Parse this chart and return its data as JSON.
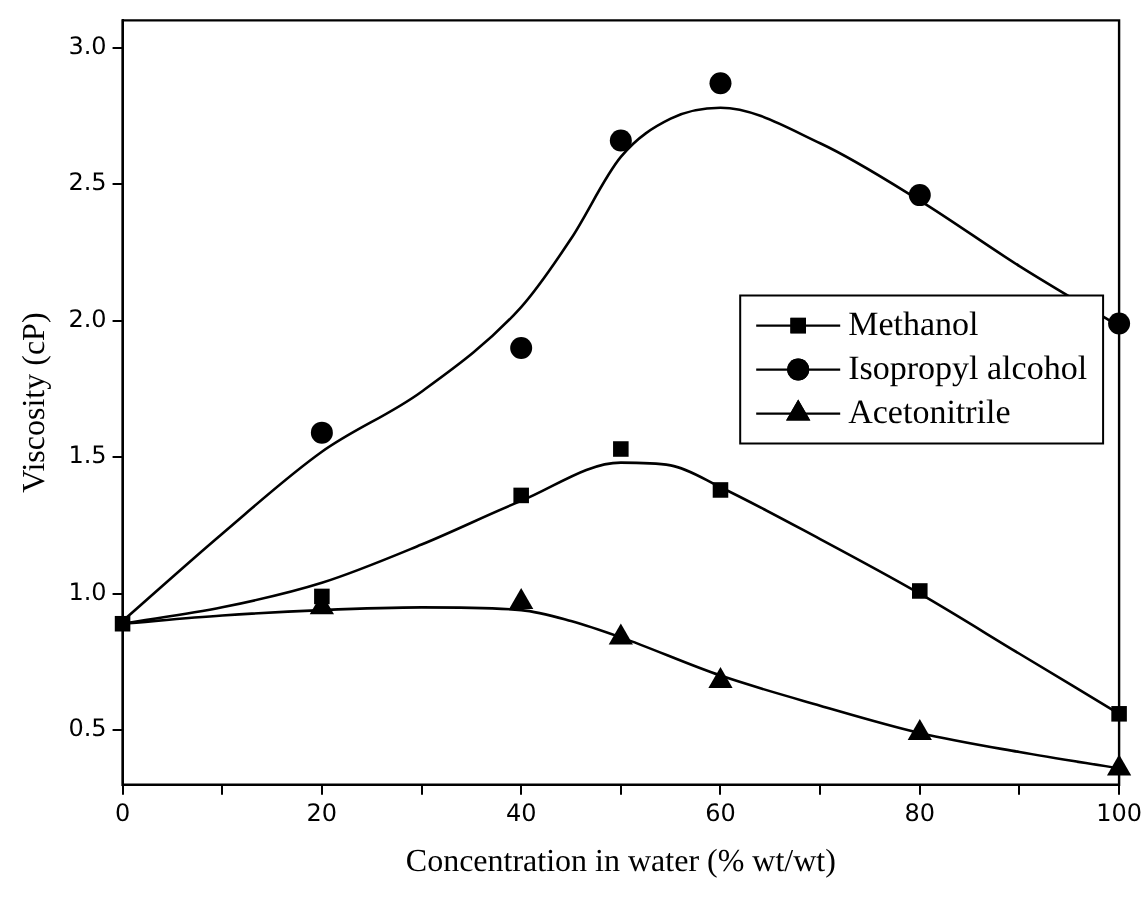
{
  "chart_data": {
    "type": "scatter",
    "xlabel": "Concentration in water (% wt/wt)",
    "ylabel": "Viscosity (cP)",
    "xlim": [
      0,
      100
    ],
    "ylim": [
      0.3,
      3.1
    ],
    "xticks": [
      0,
      {
        "value": 10,
        "label": null
      },
      20,
      {
        "value": 30,
        "label": null
      },
      40,
      {
        "value": 50,
        "label": null
      },
      60,
      {
        "value": 70,
        "label": null
      },
      80,
      {
        "value": 90,
        "label": null
      },
      100
    ],
    "yticks": [
      0.5,
      {
        "value": 1,
        "label": "1.0"
      },
      1.5,
      {
        "value": 2,
        "label": "2.0"
      },
      2.5,
      {
        "value": 3,
        "label": "3.0"
      }
    ],
    "grid": false,
    "legend": "right",
    "series": [
      {
        "name": "Methanol",
        "marker": "square",
        "color": "#000000",
        "x": [
          0,
          20,
          40,
          50,
          60,
          80,
          100
        ],
        "values": [
          0.89,
          0.99,
          1.36,
          1.53,
          1.38,
          1.01,
          0.56
        ]
      },
      {
        "name": "Isopropyl alcohol",
        "marker": "circle",
        "color": "#000000",
        "x": [
          20,
          40,
          50,
          60,
          80,
          100
        ],
        "values": [
          1.59,
          1.9,
          2.66,
          2.87,
          2.46,
          1.99
        ]
      },
      {
        "name": "Acetonitrile",
        "marker": "triangle",
        "color": "#000000",
        "x": [
          20,
          40,
          50,
          60,
          80,
          100
        ],
        "values": [
          0.95,
          0.97,
          0.84,
          0.68,
          0.49,
          0.36
        ]
      },
      {
        "type": "line",
        "marker": "none",
        "color": "#000000",
        "x": [
          0,
          10,
          20,
          30,
          40,
          50,
          55,
          60,
          70,
          80,
          90,
          100
        ],
        "values": [
          0.89,
          0.95,
          1.04,
          1.18,
          1.34,
          1.48,
          1.47,
          1.39,
          1.2,
          1.0,
          0.78,
          0.56
        ]
      },
      {
        "type": "line",
        "marker": "none",
        "color": "#000000",
        "x": [
          0,
          10,
          20,
          30,
          40,
          45,
          50,
          55,
          60,
          70,
          80,
          90,
          100
        ],
        "values": [
          0.9,
          1.22,
          1.52,
          1.74,
          2.05,
          2.3,
          2.6,
          2.74,
          2.78,
          2.65,
          2.44,
          2.2,
          1.98
        ]
      },
      {
        "type": "line",
        "marker": "none",
        "color": "#000000",
        "x": [
          0,
          10,
          20,
          30,
          40,
          45,
          50,
          60,
          70,
          80,
          90,
          100
        ],
        "values": [
          0.89,
          0.92,
          0.94,
          0.95,
          0.94,
          0.9,
          0.84,
          0.7,
          0.59,
          0.49,
          0.42,
          0.36
        ]
      }
    ]
  }
}
